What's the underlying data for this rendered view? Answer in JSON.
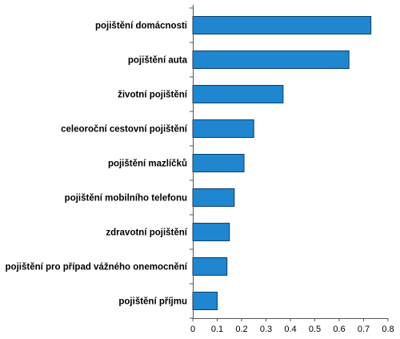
{
  "chart_data": {
    "type": "bar",
    "orientation": "horizontal",
    "categories": [
      "pojištění domácnosti",
      "pojištění auta",
      "životní pojištění",
      "celeoroční cestovní pojištění",
      "pojištění mazlíčků",
      "pojištění mobilního telefonu",
      "zdravotní pojištění",
      "pojištění pro případ vážného onemocnění",
      "pojištění příjmu"
    ],
    "values": [
      0.73,
      0.64,
      0.37,
      0.25,
      0.21,
      0.17,
      0.15,
      0.14,
      0.1
    ],
    "xlim": [
      0,
      0.8
    ],
    "x_ticks": [
      "0",
      "0.1",
      "0.2",
      "0.3",
      "0.4",
      "0.5",
      "0.6",
      "0.7",
      "0.8"
    ],
    "title": "",
    "xlabel": "",
    "ylabel": "",
    "grid": false,
    "legend": "none",
    "colors": {
      "bar_fill": "#1f86cf",
      "bar_stroke": "#0b3f6e",
      "axis": "#555555",
      "text": "#000000"
    }
  }
}
